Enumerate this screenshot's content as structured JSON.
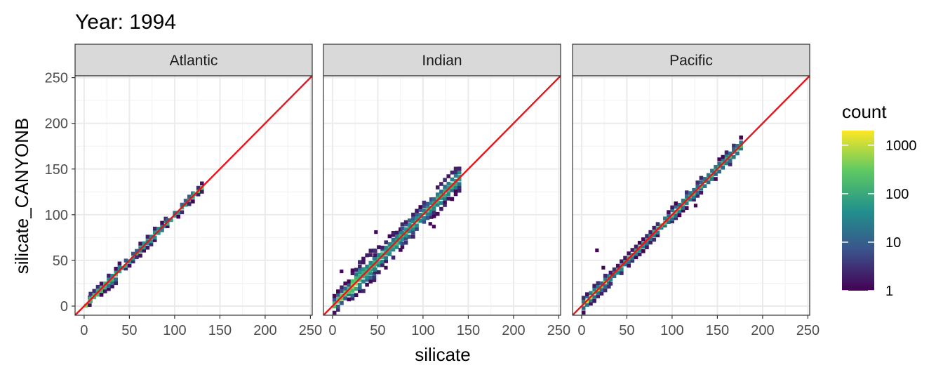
{
  "chart_data": {
    "type": "heatmap",
    "title": "Year: 1994",
    "xlabel": "silicate",
    "ylabel": "silicate_CANYONB",
    "xlim": [
      -10,
      252
    ],
    "ylim": [
      -10,
      252
    ],
    "x_ticks": [
      0,
      50,
      100,
      150,
      200,
      250
    ],
    "y_ticks": [
      0,
      50,
      100,
      150,
      200,
      250
    ],
    "grid": true,
    "reference_line": {
      "slope": 1,
      "intercept": 0,
      "color": "#e8141c"
    },
    "legend": {
      "title": "count",
      "scale": "log",
      "position": "right",
      "ticks": [
        1,
        10,
        100,
        1000
      ],
      "tick_labels": [
        "1",
        "10",
        "100",
        "1000"
      ],
      "range": [
        1,
        2000
      ],
      "colors": [
        "#440154",
        "#3b528b",
        "#21918c",
        "#5ec962",
        "#fde725"
      ]
    },
    "panels": [
      {
        "name": "Atlantic",
        "segments": [
          {
            "x": [
              0,
              5
            ],
            "spread": 5
          },
          {
            "x": [
              5,
              25
            ],
            "spread": 6
          },
          {
            "x": [
              25,
              40
            ],
            "spread": 9
          },
          {
            "x": [
              40,
              60
            ],
            "spread": 5
          },
          {
            "x": [
              60,
              90
            ],
            "spread": 6
          },
          {
            "x": [
              90,
              120
            ],
            "spread": 5
          },
          {
            "x": [
              120,
              131
            ],
            "spread": 4
          }
        ],
        "outliers": []
      },
      {
        "name": "Indian",
        "segments": [
          {
            "x": [
              0,
              20
            ],
            "spread": 10
          },
          {
            "x": [
              20,
              45
            ],
            "spread": 18
          },
          {
            "x": [
              45,
              75
            ],
            "spread": 14
          },
          {
            "x": [
              75,
              110
            ],
            "spread": 12
          },
          {
            "x": [
              110,
              140
            ],
            "spread": 14
          }
        ],
        "outliers": [
          {
            "x": 46,
            "y": 79
          },
          {
            "x": 57,
            "y": 40
          },
          {
            "x": 106,
            "y": 88
          },
          {
            "x": 110,
            "y": 85
          },
          {
            "x": 8,
            "y": 36
          }
        ]
      },
      {
        "name": "Pacific",
        "segments": [
          {
            "x": [
              0,
              30
            ],
            "spread": 8
          },
          {
            "x": [
              30,
              90
            ],
            "spread": 7
          },
          {
            "x": [
              90,
              150
            ],
            "spread": 8
          },
          {
            "x": [
              150,
              175
            ],
            "spread": 8
          }
        ],
        "outliers": [
          {
            "x": 15,
            "y": 59
          },
          {
            "x": 22,
            "y": 40
          },
          {
            "x": 124,
            "y": 108
          }
        ]
      }
    ]
  }
}
